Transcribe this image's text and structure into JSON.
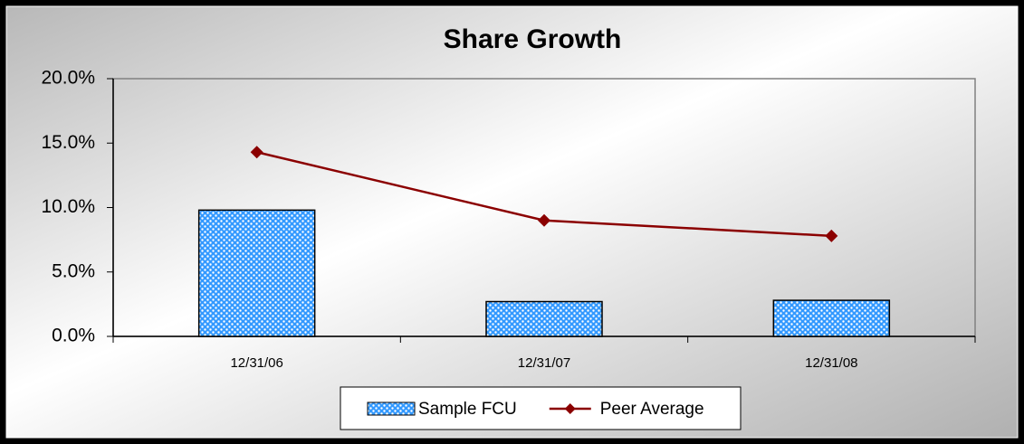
{
  "chart_data": {
    "type": "bar",
    "title": "Share  Growth",
    "categories": [
      "12/31/06",
      "12/31/07",
      "12/31/08"
    ],
    "series": [
      {
        "name": "Sample FCU",
        "type": "bar",
        "color": "#3399ff",
        "values": [
          9.8,
          2.7,
          2.8
        ]
      },
      {
        "name": "Peer Average",
        "type": "line",
        "color": "#8b0000",
        "values": [
          14.3,
          9.0,
          7.8
        ]
      }
    ],
    "ylim": [
      0,
      20
    ],
    "yticks": [
      {
        "value": 0,
        "label": "0.0%"
      },
      {
        "value": 5,
        "label": "5.0%"
      },
      {
        "value": 10,
        "label": "10.0%"
      },
      {
        "value": 15,
        "label": "15.0%"
      },
      {
        "value": 20,
        "label": "20.0%"
      }
    ],
    "grid": false,
    "legend": "bottom"
  }
}
